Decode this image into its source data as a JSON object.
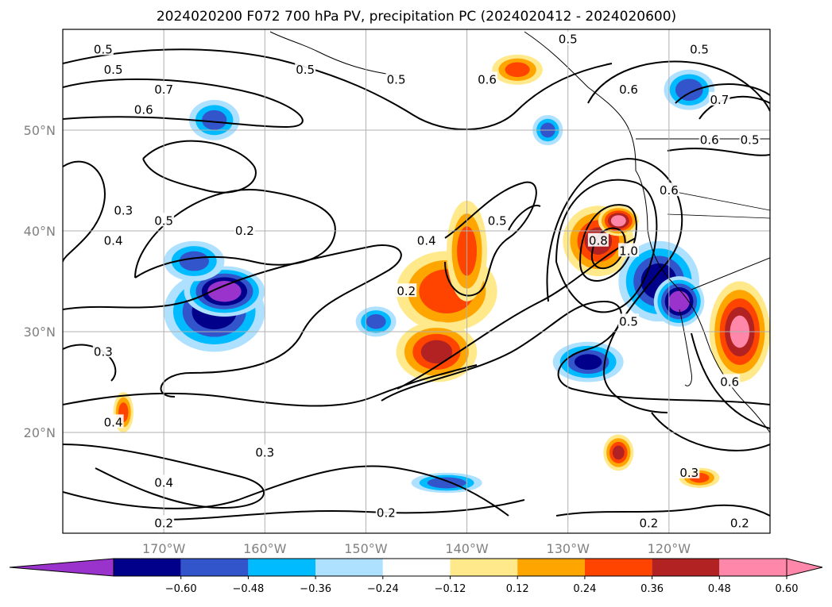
{
  "chart_data": {
    "type": "heatmap",
    "title": "2024020200 F072 700 hPa PV, precipitation PC (2024020412 - 2024020600)",
    "xlim": [
      -180,
      -110
    ],
    "ylim": [
      10,
      60
    ],
    "x_ticks": [
      {
        "value": -170,
        "label": "170°W"
      },
      {
        "value": -160,
        "label": "160°W"
      },
      {
        "value": -150,
        "label": "150°W"
      },
      {
        "value": -140,
        "label": "140°W"
      },
      {
        "value": -130,
        "label": "130°W"
      },
      {
        "value": -120,
        "label": "120°W"
      }
    ],
    "y_ticks": [
      {
        "value": 20,
        "label": "20°N"
      },
      {
        "value": 30,
        "label": "30°N"
      },
      {
        "value": 40,
        "label": "40°N"
      },
      {
        "value": 50,
        "label": "50°N"
      }
    ],
    "grid": true,
    "colorbar": {
      "orientation": "horizontal",
      "extend": "both",
      "levels": [
        -0.72,
        -0.6,
        -0.48,
        -0.36,
        -0.24,
        -0.12,
        0.12,
        0.24,
        0.36,
        0.48,
        0.6,
        0.72
      ],
      "tick_labels": [
        "−0.60",
        "−0.48",
        "−0.36",
        "−0.24",
        "−0.12",
        "0.12",
        "0.24",
        "0.36",
        "0.48",
        "0.60"
      ],
      "colors": [
        "#9933cc",
        "#00008b",
        "#3355cc",
        "#00bbff",
        "#aee0ff",
        "#ffffff",
        "#ffe98a",
        "#ffa500",
        "#ff4400",
        "#b22222",
        "#ff88aa",
        "#ff88aa"
      ]
    },
    "contour_labels": [
      {
        "lon": -176,
        "lat": 58,
        "text": "0.5"
      },
      {
        "lon": -156,
        "lat": 56,
        "text": "0.5"
      },
      {
        "lon": -147,
        "lat": 55,
        "text": "0.5"
      },
      {
        "lon": -138,
        "lat": 55,
        "text": "0.6"
      },
      {
        "lon": -130,
        "lat": 59,
        "text": "0.5"
      },
      {
        "lon": -124,
        "lat": 54,
        "text": "0.6"
      },
      {
        "lon": -117,
        "lat": 58,
        "text": "0.5"
      },
      {
        "lon": -115,
        "lat": 53,
        "text": "0.7"
      },
      {
        "lon": -116,
        "lat": 49,
        "text": "0.6"
      },
      {
        "lon": -112,
        "lat": 49,
        "text": "0.5"
      },
      {
        "lon": -175,
        "lat": 56,
        "text": "0.5"
      },
      {
        "lon": -170,
        "lat": 54,
        "text": "0.7"
      },
      {
        "lon": -172,
        "lat": 52,
        "text": "0.6"
      },
      {
        "lon": -174,
        "lat": 42,
        "text": "0.3"
      },
      {
        "lon": -175,
        "lat": 39,
        "text": "0.4"
      },
      {
        "lon": -170,
        "lat": 41,
        "text": "0.5"
      },
      {
        "lon": -162,
        "lat": 40,
        "text": "0.2"
      },
      {
        "lon": -144,
        "lat": 39,
        "text": "0.4"
      },
      {
        "lon": -137,
        "lat": 41,
        "text": "0.5"
      },
      {
        "lon": -146,
        "lat": 34,
        "text": "0.2"
      },
      {
        "lon": -127,
        "lat": 39,
        "text": "0.8"
      },
      {
        "lon": -124,
        "lat": 38,
        "text": "1.0"
      },
      {
        "lon": -120,
        "lat": 44,
        "text": "0.6"
      },
      {
        "lon": -124,
        "lat": 31,
        "text": "0.5"
      },
      {
        "lon": -176,
        "lat": 28,
        "text": "0.3"
      },
      {
        "lon": -175,
        "lat": 21,
        "text": "0.4"
      },
      {
        "lon": -160,
        "lat": 18,
        "text": "0.3"
      },
      {
        "lon": -170,
        "lat": 15,
        "text": "0.4"
      },
      {
        "lon": -170,
        "lat": 11,
        "text": "0.2"
      },
      {
        "lon": -148,
        "lat": 12,
        "text": "0.2"
      },
      {
        "lon": -122,
        "lat": 11,
        "text": "0.2"
      },
      {
        "lon": -118,
        "lat": 16,
        "text": "0.3"
      },
      {
        "lon": -113,
        "lat": 11,
        "text": "0.2"
      },
      {
        "lon": -114,
        "lat": 25,
        "text": "0.6"
      }
    ],
    "precip_blobs": [
      {
        "lon": -165,
        "lat": 32,
        "rx": 5,
        "ry": 4,
        "value": -0.55
      },
      {
        "lon": -164,
        "lat": 34,
        "rx": 4,
        "ry": 2.5,
        "value": -0.7
      },
      {
        "lon": -167,
        "lat": 37,
        "rx": 3,
        "ry": 2,
        "value": -0.4
      },
      {
        "lon": -165,
        "lat": 51,
        "rx": 2.5,
        "ry": 2,
        "value": -0.4
      },
      {
        "lon": -142,
        "lat": 34,
        "rx": 5,
        "ry": 4,
        "value": 0.45
      },
      {
        "lon": -143,
        "lat": 28,
        "rx": 4,
        "ry": 3,
        "value": 0.5
      },
      {
        "lon": -140,
        "lat": 38,
        "rx": 2,
        "ry": 5,
        "value": 0.4
      },
      {
        "lon": -127,
        "lat": 39,
        "rx": 3.5,
        "ry": 3.5,
        "value": 0.5
      },
      {
        "lon": -125,
        "lat": 41,
        "rx": 2,
        "ry": 1.5,
        "value": 0.65
      },
      {
        "lon": -121,
        "lat": 35,
        "rx": 4,
        "ry": 4,
        "value": -0.55
      },
      {
        "lon": -119,
        "lat": 33,
        "rx": 2.5,
        "ry": 2.5,
        "value": -0.7
      },
      {
        "lon": -128,
        "lat": 27,
        "rx": 3.5,
        "ry": 2,
        "value": -0.5
      },
      {
        "lon": -113,
        "lat": 30,
        "rx": 3,
        "ry": 5,
        "value": 0.6
      },
      {
        "lon": -125,
        "lat": 18,
        "rx": 1.5,
        "ry": 1.8,
        "value": 0.5
      },
      {
        "lon": -142,
        "lat": 15,
        "rx": 3.5,
        "ry": 1,
        "value": -0.45
      },
      {
        "lon": -135,
        "lat": 56,
        "rx": 2.5,
        "ry": 1.5,
        "value": 0.4
      },
      {
        "lon": -118,
        "lat": 54,
        "rx": 2.5,
        "ry": 2,
        "value": -0.45
      },
      {
        "lon": -174,
        "lat": 22,
        "rx": 1,
        "ry": 2,
        "value": 0.4
      },
      {
        "lon": -117,
        "lat": 15.5,
        "rx": 2,
        "ry": 1,
        "value": 0.4
      },
      {
        "lon": -149,
        "lat": 31,
        "rx": 2,
        "ry": 1.5,
        "value": -0.4
      },
      {
        "lon": -132,
        "lat": 50,
        "rx": 1.5,
        "ry": 1.5,
        "value": -0.4
      }
    ]
  }
}
